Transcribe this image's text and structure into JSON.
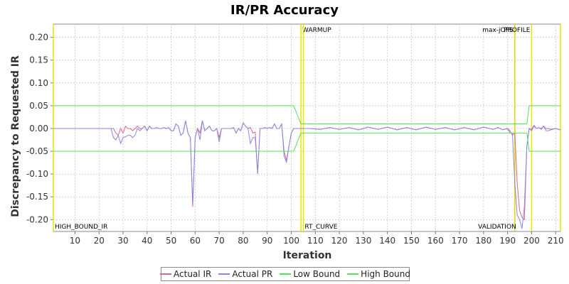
{
  "chart_data": {
    "type": "line",
    "title": "IR/PR Accuracy",
    "xlabel": "Iteration",
    "ylabel": "Discrepancy to Requested IR",
    "xlim": [
      1,
      212
    ],
    "ylim": [
      -0.226,
      0.229
    ],
    "x_ticks": [
      "10",
      "20",
      "30",
      "40",
      "50",
      "60",
      "70",
      "80",
      "90",
      "100",
      "110",
      "120",
      "130",
      "140",
      "150",
      "160",
      "170",
      "180",
      "190",
      "200",
      "210"
    ],
    "y_ticks": [
      "0.20",
      "0.15",
      "0.10",
      "0.05",
      "0.00",
      "-0.05",
      "-0.10",
      "-0.15",
      "-0.20"
    ],
    "grid": true,
    "legend_position": "bottom",
    "series": [
      {
        "name": "Actual IR",
        "color": "#d9668e",
        "points": [
          [
            1,
            0
          ],
          [
            26,
            0
          ],
          [
            27,
            -0.01
          ],
          [
            28,
            -0.015
          ],
          [
            29,
            0.0
          ],
          [
            30,
            -0.01
          ],
          [
            31,
            0.005
          ],
          [
            32,
            0.0
          ],
          [
            33,
            0.0
          ],
          [
            34,
            -0.005
          ],
          [
            35,
            0.0
          ],
          [
            36,
            0.005
          ],
          [
            37,
            0.0
          ],
          [
            38,
            0.0
          ],
          [
            39,
            0.005
          ],
          [
            40,
            -0.005
          ],
          [
            41,
            0.005
          ],
          [
            42,
            0.0
          ],
          [
            43,
            0.0
          ],
          [
            44,
            0.002
          ],
          [
            45,
            0.0
          ],
          [
            46,
            0.0
          ],
          [
            47,
            0.002
          ],
          [
            48,
            0.0
          ],
          [
            49,
            0.002
          ],
          [
            50,
            -0.005
          ],
          [
            51,
            -0.005
          ],
          [
            52,
            0.01
          ],
          [
            53,
            0.005
          ],
          [
            54,
            -0.015
          ],
          [
            55,
            -0.01
          ],
          [
            56,
            0.017
          ],
          [
            57,
            -0.01
          ],
          [
            58,
            -0.02
          ],
          [
            59,
            -0.172
          ],
          [
            60,
            -0.02
          ],
          [
            61,
            0.0
          ],
          [
            62,
            -0.01
          ],
          [
            63,
            0.017
          ],
          [
            64,
            -0.005
          ],
          [
            65,
            0.0
          ],
          [
            66,
            0.005
          ],
          [
            67,
            -0.005
          ],
          [
            68,
            -0.005
          ],
          [
            69,
            0.0
          ],
          [
            70,
            -0.02
          ],
          [
            71,
            0.0
          ],
          [
            72,
            0.0
          ],
          [
            73,
            0.0
          ],
          [
            74,
            0.0
          ],
          [
            75,
            0.0
          ],
          [
            76,
            0.002
          ],
          [
            77,
            -0.01
          ],
          [
            78,
            0.0
          ],
          [
            79,
            -0.005
          ],
          [
            80,
            0.012
          ],
          [
            81,
            0.005
          ],
          [
            82,
            0.0
          ],
          [
            83,
            0.002
          ],
          [
            84,
            -0.01
          ],
          [
            85,
            -0.008
          ],
          [
            86,
            -0.098
          ],
          [
            87,
            0.0
          ],
          [
            88,
            0.0
          ],
          [
            89,
            0.002
          ],
          [
            90,
            0.0
          ],
          [
            91,
            0.002
          ],
          [
            92,
            0.0
          ],
          [
            93,
            0.01
          ],
          [
            94,
            0.0
          ],
          [
            95,
            0.0
          ],
          [
            96,
            0.01
          ],
          [
            97,
            -0.05
          ],
          [
            98,
            -0.07
          ],
          [
            99,
            -0.04
          ],
          [
            100,
            -0.01
          ],
          [
            101,
            0.0
          ],
          [
            108,
            0.0
          ],
          [
            112,
            -0.002
          ],
          [
            116,
            0.002
          ],
          [
            120,
            -0.002
          ],
          [
            124,
            0.002
          ],
          [
            128,
            -0.003
          ],
          [
            132,
            0.003
          ],
          [
            136,
            -0.002
          ],
          [
            140,
            0.003
          ],
          [
            144,
            -0.003
          ],
          [
            148,
            0.002
          ],
          [
            152,
            -0.003
          ],
          [
            156,
            0.003
          ],
          [
            160,
            -0.002
          ],
          [
            164,
            0.002
          ],
          [
            168,
            -0.003
          ],
          [
            172,
            0.002
          ],
          [
            176,
            -0.003
          ],
          [
            180,
            0.003
          ],
          [
            184,
            -0.002
          ],
          [
            186,
            0.002
          ],
          [
            188,
            -0.003
          ],
          [
            190,
            0.0
          ],
          [
            191,
            -0.005
          ],
          [
            192,
            -0.015
          ],
          [
            193,
            -0.01
          ],
          [
            194,
            -0.12
          ],
          [
            195,
            -0.18
          ],
          [
            196,
            -0.195
          ],
          [
            197,
            -0.2
          ],
          [
            198,
            -0.04
          ],
          [
            199,
            0.0
          ],
          [
            200,
            -0.002
          ],
          [
            201,
            0.007
          ],
          [
            202,
            0.0
          ],
          [
            203,
            0.002
          ],
          [
            204,
            0.0
          ],
          [
            205,
            0.005
          ],
          [
            206,
            0.0
          ],
          [
            207,
            0.0
          ],
          [
            208,
            -0.002
          ],
          [
            210,
            0.0
          ],
          [
            212,
            -0.003
          ]
        ]
      },
      {
        "name": "Actual PR",
        "color": "#8a86e6",
        "points": [
          [
            1,
            0
          ],
          [
            25,
            0
          ],
          [
            26,
            -0.02
          ],
          [
            27,
            -0.025
          ],
          [
            28,
            -0.015
          ],
          [
            29,
            -0.033
          ],
          [
            30,
            -0.02
          ],
          [
            31,
            -0.018
          ],
          [
            32,
            -0.015
          ],
          [
            33,
            -0.015
          ],
          [
            34,
            -0.02
          ],
          [
            35,
            -0.015
          ],
          [
            36,
            0.0
          ],
          [
            37,
            -0.005
          ],
          [
            38,
            0.0
          ],
          [
            39,
            0.005
          ],
          [
            40,
            -0.005
          ],
          [
            41,
            0.005
          ],
          [
            42,
            0.0
          ],
          [
            43,
            0.0
          ],
          [
            44,
            0.002
          ],
          [
            45,
            0.0
          ],
          [
            46,
            0.0
          ],
          [
            47,
            0.002
          ],
          [
            48,
            0.0
          ],
          [
            49,
            0.002
          ],
          [
            50,
            -0.005
          ],
          [
            51,
            -0.005
          ],
          [
            52,
            0.01
          ],
          [
            53,
            0.005
          ],
          [
            54,
            -0.015
          ],
          [
            55,
            -0.01
          ],
          [
            56,
            0.017
          ],
          [
            57,
            -0.01
          ],
          [
            58,
            -0.02
          ],
          [
            59,
            -0.165
          ],
          [
            60,
            -0.02
          ],
          [
            61,
            0.0
          ],
          [
            62,
            -0.025
          ],
          [
            63,
            0.017
          ],
          [
            64,
            -0.005
          ],
          [
            65,
            0.0
          ],
          [
            66,
            0.005
          ],
          [
            67,
            -0.005
          ],
          [
            68,
            -0.005
          ],
          [
            69,
            0.0
          ],
          [
            70,
            -0.03
          ],
          [
            71,
            0.0
          ],
          [
            72,
            0.0
          ],
          [
            73,
            0.0
          ],
          [
            74,
            0.0
          ],
          [
            75,
            0.0
          ],
          [
            76,
            0.002
          ],
          [
            77,
            -0.01
          ],
          [
            78,
            0.0
          ],
          [
            79,
            -0.005
          ],
          [
            80,
            0.012
          ],
          [
            81,
            0.005
          ],
          [
            82,
            0.0
          ],
          [
            83,
            -0.033
          ],
          [
            84,
            -0.02
          ],
          [
            85,
            -0.02
          ],
          [
            86,
            -0.1
          ],
          [
            87,
            0.0
          ],
          [
            88,
            0.0
          ],
          [
            89,
            0.002
          ],
          [
            90,
            0.0
          ],
          [
            91,
            0.002
          ],
          [
            92,
            0.0
          ],
          [
            93,
            0.01
          ],
          [
            94,
            0.0
          ],
          [
            95,
            0.0
          ],
          [
            96,
            0.01
          ],
          [
            97,
            -0.06
          ],
          [
            98,
            -0.075
          ],
          [
            99,
            -0.04
          ],
          [
            100,
            -0.01
          ],
          [
            101,
            0.0
          ],
          [
            108,
            0.0
          ],
          [
            112,
            -0.002
          ],
          [
            116,
            0.002
          ],
          [
            120,
            -0.002
          ],
          [
            124,
            0.002
          ],
          [
            128,
            -0.003
          ],
          [
            132,
            0.003
          ],
          [
            136,
            -0.002
          ],
          [
            140,
            0.003
          ],
          [
            144,
            -0.003
          ],
          [
            148,
            0.002
          ],
          [
            152,
            -0.003
          ],
          [
            156,
            0.003
          ],
          [
            160,
            -0.002
          ],
          [
            164,
            0.002
          ],
          [
            168,
            -0.003
          ],
          [
            172,
            0.002
          ],
          [
            176,
            -0.003
          ],
          [
            180,
            0.003
          ],
          [
            184,
            -0.002
          ],
          [
            186,
            0.002
          ],
          [
            188,
            -0.003
          ],
          [
            190,
            0.0
          ],
          [
            191,
            -0.01
          ],
          [
            192,
            -0.01
          ],
          [
            193,
            -0.12
          ],
          [
            194,
            -0.19
          ],
          [
            195,
            -0.2
          ],
          [
            196,
            -0.22
          ],
          [
            197,
            -0.17
          ],
          [
            198,
            -0.04
          ],
          [
            199,
            0.0
          ],
          [
            200,
            -0.005
          ],
          [
            201,
            0.005
          ],
          [
            202,
            0.0
          ],
          [
            203,
            0.002
          ],
          [
            204,
            -0.002
          ],
          [
            205,
            0.005
          ],
          [
            206,
            -0.005
          ],
          [
            207,
            -0.005
          ],
          [
            208,
            -0.003
          ],
          [
            210,
            0.0
          ],
          [
            212,
            -0.003
          ]
        ]
      },
      {
        "name": "Low Bound",
        "color": "#55e055",
        "points": [
          [
            1,
            -0.05
          ],
          [
            101,
            -0.05
          ],
          [
            104,
            -0.01
          ],
          [
            198,
            -0.01
          ],
          [
            199,
            -0.05
          ],
          [
            212,
            -0.05
          ]
        ]
      },
      {
        "name": "High Bound",
        "color": "#55e055",
        "points": [
          [
            1,
            0.05
          ],
          [
            101,
            0.05
          ],
          [
            104,
            0.01
          ],
          [
            198,
            0.01
          ],
          [
            199,
            0.05
          ],
          [
            212,
            0.05
          ]
        ]
      }
    ],
    "markers": [
      {
        "x": 1,
        "label": "HIGH_BOUND_IR",
        "label_pos": "bottom",
        "color": "#e6e600"
      },
      {
        "x": 104,
        "label": "WARMUP",
        "label_pos": "top",
        "color": "#e6e600"
      },
      {
        "x": 105,
        "label": "RT_CURVE",
        "label_pos": "bottom",
        "color": "#e6e600"
      },
      {
        "x": 193,
        "label": "max-jOPS",
        "label_pos": "top",
        "color": "#ff0000"
      },
      {
        "x": 193,
        "label": "VALIDATION",
        "label_pos": "bottom",
        "color": "#e6e600"
      },
      {
        "x": 200,
        "label": "PROFILE",
        "label_pos": "top",
        "color": "#e6e600"
      },
      {
        "x": 212,
        "label": "",
        "label_pos": "top",
        "color": "#e6e600"
      }
    ]
  }
}
